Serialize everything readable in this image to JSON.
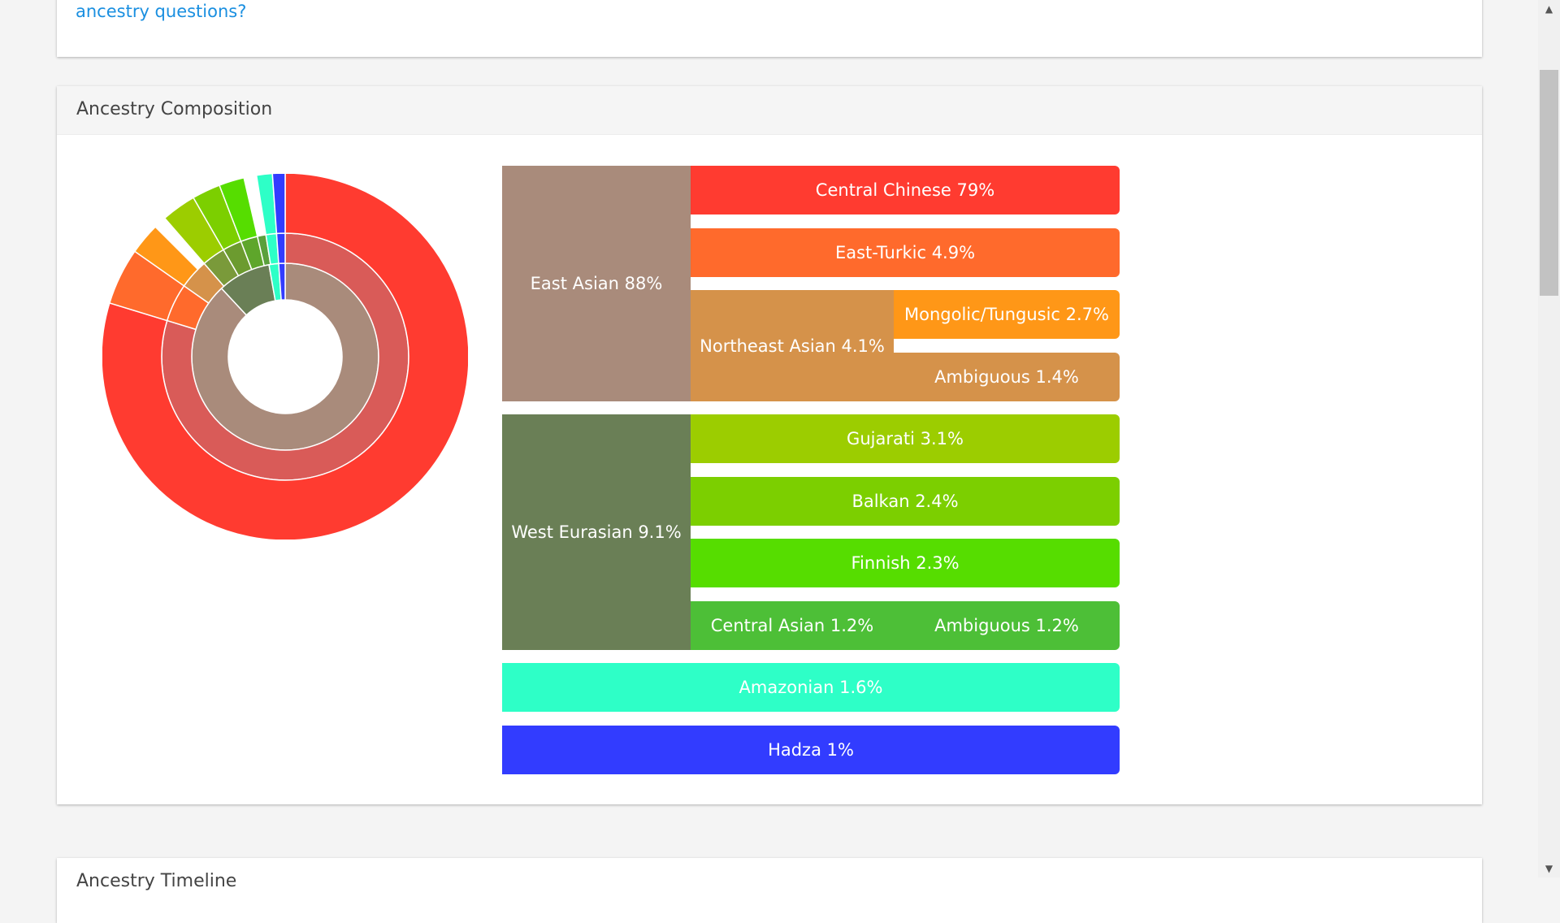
{
  "top_card": {
    "link_text": "ancestry questions?"
  },
  "composition": {
    "title": "Ancestry Composition",
    "segments": [
      {
        "key": "east_asian",
        "label": "East Asian 88%",
        "color": "#a98b7b"
      },
      {
        "key": "central_chinese",
        "label": "Central Chinese 79%",
        "color": "#ff3b30"
      },
      {
        "key": "east_turkic",
        "label": "East-Turkic 4.9%",
        "color": "#ff6a2c"
      },
      {
        "key": "northeast_asian",
        "label": "Northeast Asian 4.1%",
        "color": "#d5924a"
      },
      {
        "key": "mongolic_tungusic",
        "label": "Mongolic/Tungusic 2.7%",
        "color": "#ff9717"
      },
      {
        "key": "ambiguous_ne",
        "label": "Ambiguous 1.4%",
        "color": "#d5924a"
      },
      {
        "key": "west_eurasian",
        "label": "West Eurasian 9.1%",
        "color": "#6a7f56"
      },
      {
        "key": "gujarati",
        "label": "Gujarati 3.1%",
        "color": "#9ccd00"
      },
      {
        "key": "balkan",
        "label": "Balkan 2.4%",
        "color": "#7ccf00"
      },
      {
        "key": "finnish",
        "label": "Finnish 2.3%",
        "color": "#56dd00"
      },
      {
        "key": "central_asian",
        "label": "Central Asian 1.2%",
        "color": "#4dbf37"
      },
      {
        "key": "ambiguous_we",
        "label": "Ambiguous 1.2%",
        "color": "#4dbf37"
      },
      {
        "key": "amazonian",
        "label": "Amazonian 1.6%",
        "color": "#2effc7"
      },
      {
        "key": "hadza",
        "label": "Hadza 1%",
        "color": "#323cff"
      }
    ],
    "donut_colors": {
      "inner_east_asian": "#a98b7b",
      "inner_west_eurasian": "#6a7f56",
      "inner_amazonian": "#2effc7",
      "inner_hadza": "#323cff",
      "mid_central_chinese": "#d95b58",
      "mid_east_turkic": "#ff6a2c",
      "mid_northeast_asian": "#d5924a",
      "mid_gujarati": "#7a9a3a",
      "mid_balkan": "#6c9b2f",
      "mid_finnish": "#5ea62b",
      "mid_central_asian": "#5aa03c",
      "outer_central_chinese": "#ff3b30",
      "outer_east_turkic": "#ff6a2c",
      "outer_mongolic": "#ff9717",
      "outer_gujarati": "#9ccd00",
      "outer_balkan": "#7ccf00",
      "outer_finnish": "#56dd00",
      "outer_amazonian": "#2effc7",
      "outer_hadza": "#323cff"
    }
  },
  "bottom_card": {
    "title": "Ancestry Timeline"
  }
}
